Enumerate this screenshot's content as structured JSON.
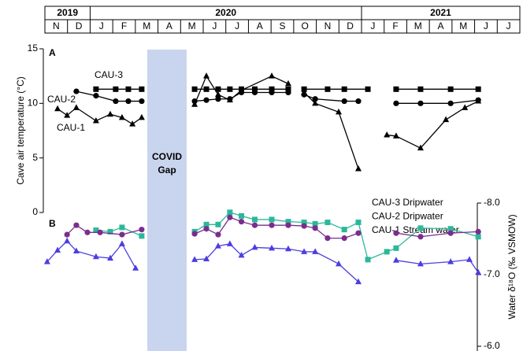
{
  "timeline": {
    "years": [
      {
        "label": "2019",
        "months": [
          "N",
          "D"
        ]
      },
      {
        "label": "2020",
        "months": [
          "J",
          "F",
          "M",
          "A",
          "M",
          "J",
          "J",
          "A",
          "S",
          "O",
          "N",
          "D"
        ]
      },
      {
        "label": "2021",
        "months": [
          "J",
          "F",
          "M",
          "A",
          "M",
          "J",
          "J"
        ]
      }
    ]
  },
  "covid_gap": [
    "COVID",
    "Gap"
  ],
  "chart_data": [
    {
      "type": "line",
      "panel_label": "A",
      "ylabel": "Cave air temperature (°C)",
      "xlim": [
        0,
        21
      ],
      "ylim": [
        0,
        15
      ],
      "yticks": [
        0,
        5,
        10,
        15
      ],
      "annotations": [
        "CAU-3",
        "CAU-2",
        "CAU-1"
      ],
      "series": [
        {
          "name": "CAU-3",
          "color": "#000000",
          "marker": "square",
          "x": [
            2.26,
            3.13,
            3.69,
            4.28,
            null,
            6.62,
            7.14,
            7.66,
            8.18,
            8.69,
            9.28,
            10.03,
            10.76,
            null,
            11.46,
            12.5,
            13.24,
            14.28,
            null,
            15.53,
            16.61,
            17.94,
            19.16
          ],
          "values": [
            11.3,
            11.3,
            11.3,
            11.3,
            null,
            11.3,
            11.3,
            11.3,
            11.3,
            11.3,
            11.3,
            11.3,
            11.3,
            null,
            11.3,
            11.3,
            11.3,
            11.3,
            null,
            11.3,
            11.3,
            11.3,
            11.3
          ]
        },
        {
          "name": "CAU-2",
          "color": "#000000",
          "marker": "circle",
          "x": [
            1.39,
            2.26,
            3.13,
            3.69,
            4.28,
            null,
            6.62,
            7.14,
            7.66,
            8.18,
            8.69,
            9.28,
            10.03,
            10.76,
            null,
            11.46,
            11.95,
            13.24,
            13.86,
            null,
            15.53,
            16.61,
            17.94,
            19.16
          ],
          "values": [
            11.1,
            10.7,
            10.2,
            10.2,
            10.2,
            null,
            10.2,
            10.3,
            10.4,
            10.4,
            11.0,
            11.0,
            11.0,
            11.0,
            null,
            10.8,
            10.4,
            10.2,
            10.2,
            null,
            10.0,
            10.0,
            10.0,
            10.3
          ]
        },
        {
          "name": "CAU-1",
          "color": "#000000",
          "marker": "triangle",
          "x": [
            0.56,
            0.98,
            1.39,
            2.26,
            2.89,
            3.41,
            3.87,
            4.28,
            null,
            6.62,
            7.14,
            7.66,
            8.18,
            8.69,
            10.03,
            10.76,
            null,
            11.46,
            11.95,
            12.99,
            13.86,
            null,
            15.12,
            15.53,
            16.61,
            17.73,
            18.57,
            19.16
          ],
          "values": [
            9.5,
            8.9,
            9.6,
            8.4,
            9.0,
            8.7,
            8.1,
            8.7,
            null,
            9.9,
            12.5,
            10.8,
            10.3,
            11.2,
            12.5,
            11.8,
            null,
            11.0,
            10.0,
            9.2,
            4.0,
            null,
            7.1,
            7.0,
            5.9,
            8.5,
            9.6,
            10.2
          ]
        }
      ]
    },
    {
      "type": "line",
      "panel_label": "B",
      "y2label": "Water δ¹⁸O (‰ VSMOW)",
      "xlim": [
        0,
        21
      ],
      "y2lim": [
        -6,
        -8
      ],
      "y2ticks": [
        {
          "value": -8,
          "label": "-8.0"
        },
        {
          "value": -7,
          "label": "-7.0"
        },
        {
          "value": -6,
          "label": "-6.0"
        }
      ],
      "legend": "upper right",
      "series": [
        {
          "name": "CAU-3 Dripwater",
          "color": "#2bb89a",
          "marker": "square",
          "axis": "y2",
          "x": [
            2.26,
            2.89,
            3.41,
            4.28,
            null,
            6.62,
            7.14,
            7.66,
            8.18,
            8.69,
            9.28,
            10.03,
            10.76,
            11.46,
            11.95,
            12.5,
            13.24,
            13.86,
            14.28,
            15.12,
            15.53,
            16.61,
            17.94,
            19.16
          ],
          "values": [
            -7.62,
            -7.6,
            -7.66,
            -7.54,
            null,
            -7.6,
            -7.7,
            -7.7,
            -7.87,
            -7.82,
            -7.77,
            -7.77,
            -7.74,
            -7.73,
            -7.71,
            -7.73,
            -7.63,
            -7.73,
            -7.21,
            -7.32,
            -7.37,
            -7.65,
            -7.64,
            -7.53
          ]
        },
        {
          "name": "CAU-2 Dripwater",
          "color": "#7a2d8f",
          "marker": "circle",
          "axis": "y2",
          "x": [
            0.98,
            1.39,
            1.88,
            2.44,
            3.41,
            4.28,
            null,
            6.62,
            7.14,
            7.66,
            8.18,
            8.69,
            9.28,
            10.03,
            10.76,
            11.46,
            11.95,
            12.5,
            13.24,
            13.86,
            null,
            15.53,
            16.61,
            17.94,
            19.16
          ],
          "values": [
            -7.56,
            -7.69,
            -7.59,
            -7.59,
            -7.56,
            -7.63,
            null,
            -7.57,
            -7.64,
            -7.56,
            -7.8,
            -7.74,
            -7.69,
            -7.69,
            -7.69,
            -7.68,
            -7.65,
            -7.51,
            -7.51,
            -7.58,
            null,
            -7.58,
            -7.53,
            -7.58,
            -7.6
          ]
        },
        {
          "name": "CAU-1 Stream water",
          "color": "#4b3ee0",
          "marker": "triangle",
          "axis": "y2",
          "x": [
            0.1,
            0.56,
            0.98,
            1.39,
            2.26,
            2.89,
            3.41,
            4.01,
            null,
            6.62,
            7.14,
            7.66,
            8.18,
            8.69,
            9.28,
            10.03,
            10.76,
            11.46,
            11.95,
            12.99,
            13.86,
            null,
            15.53,
            16.61,
            17.94,
            18.77,
            19.16
          ],
          "values": [
            -7.18,
            -7.34,
            -7.47,
            -7.33,
            -7.25,
            -7.23,
            -7.43,
            -7.09,
            null,
            -7.21,
            -7.22,
            -7.4,
            -7.43,
            -7.27,
            -7.38,
            -7.37,
            -7.36,
            -7.32,
            -7.32,
            -7.15,
            -6.9,
            null,
            -7.2,
            -7.15,
            -7.18,
            -7.21,
            -7.03
          ]
        }
      ]
    }
  ]
}
